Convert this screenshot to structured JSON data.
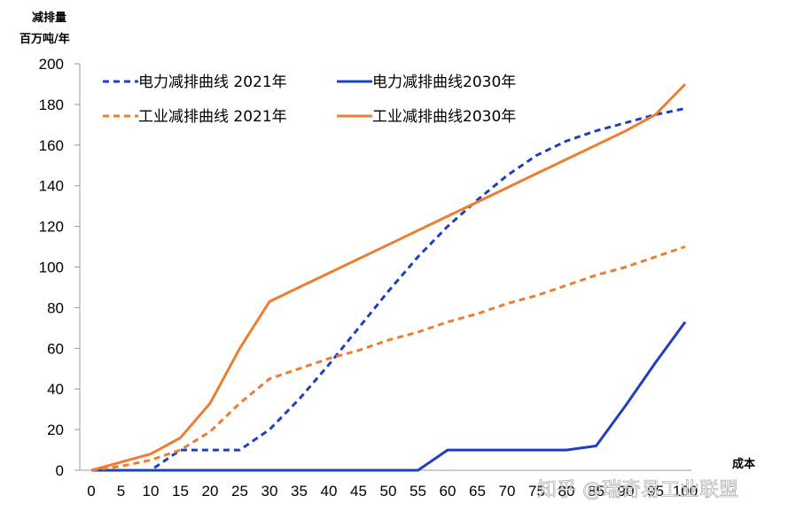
{
  "chart_data": {
    "type": "line",
    "title": "",
    "ylabel": [
      "减排量",
      "百万吨/年"
    ],
    "xlabel": "成本",
    "ylim": [
      0,
      200
    ],
    "yticks": [
      0,
      20,
      40,
      60,
      80,
      100,
      120,
      140,
      160,
      180,
      200
    ],
    "x": [
      0,
      5,
      10,
      15,
      20,
      25,
      30,
      35,
      40,
      45,
      50,
      55,
      60,
      65,
      70,
      75,
      80,
      85,
      90,
      95,
      100
    ],
    "grid": false,
    "legend_position": "top-left",
    "series": [
      {
        "name": "电力减排曲线 2021年",
        "color": "#1f3fbf",
        "dash": true,
        "points": [
          [
            0,
            0
          ],
          [
            10,
            0
          ],
          [
            15,
            10
          ],
          [
            20,
            10
          ],
          [
            25,
            10
          ],
          [
            30,
            20
          ],
          [
            35,
            35
          ],
          [
            40,
            52
          ],
          [
            45,
            70
          ],
          [
            50,
            88
          ],
          [
            55,
            105
          ],
          [
            60,
            120
          ],
          [
            65,
            133
          ],
          [
            70,
            145
          ],
          [
            75,
            155
          ],
          [
            80,
            162
          ],
          [
            85,
            167
          ],
          [
            90,
            171
          ],
          [
            95,
            175
          ],
          [
            100,
            178
          ]
        ]
      },
      {
        "name": "电力减排曲线2030年",
        "color": "#1f3fbf",
        "dash": false,
        "points": [
          [
            0,
            0
          ],
          [
            55,
            0
          ],
          [
            60,
            10
          ],
          [
            65,
            10
          ],
          [
            70,
            10
          ],
          [
            75,
            10
          ],
          [
            80,
            10
          ],
          [
            85,
            12
          ],
          [
            90,
            32
          ],
          [
            95,
            53
          ],
          [
            100,
            73
          ]
        ]
      },
      {
        "name": "工业减排曲线 2021年",
        "color": "#ed7d31",
        "dash": true,
        "points": [
          [
            0,
            0
          ],
          [
            5,
            2
          ],
          [
            10,
            5
          ],
          [
            15,
            10
          ],
          [
            20,
            19
          ],
          [
            25,
            33
          ],
          [
            30,
            45
          ],
          [
            35,
            50
          ],
          [
            40,
            55
          ],
          [
            45,
            59
          ],
          [
            50,
            64
          ],
          [
            55,
            68
          ],
          [
            60,
            73
          ],
          [
            65,
            77
          ],
          [
            70,
            82
          ],
          [
            75,
            86
          ],
          [
            80,
            91
          ],
          [
            85,
            96
          ],
          [
            90,
            100
          ],
          [
            95,
            105
          ],
          [
            100,
            110
          ]
        ]
      },
      {
        "name": "工业减排曲线2030年",
        "color": "#ed7d31",
        "dash": false,
        "points": [
          [
            0,
            0
          ],
          [
            5,
            4
          ],
          [
            10,
            8
          ],
          [
            15,
            16
          ],
          [
            20,
            33
          ],
          [
            25,
            60
          ],
          [
            30,
            83
          ],
          [
            35,
            90
          ],
          [
            40,
            97
          ],
          [
            45,
            104
          ],
          [
            50,
            111
          ],
          [
            55,
            118
          ],
          [
            60,
            125
          ],
          [
            65,
            132
          ],
          [
            70,
            139
          ],
          [
            75,
            146
          ],
          [
            80,
            153
          ],
          [
            85,
            160
          ],
          [
            90,
            167
          ],
          [
            95,
            175
          ],
          [
            100,
            190
          ]
        ]
      }
    ]
  },
  "watermark": "知乎 @瑞奇易工业联盟"
}
